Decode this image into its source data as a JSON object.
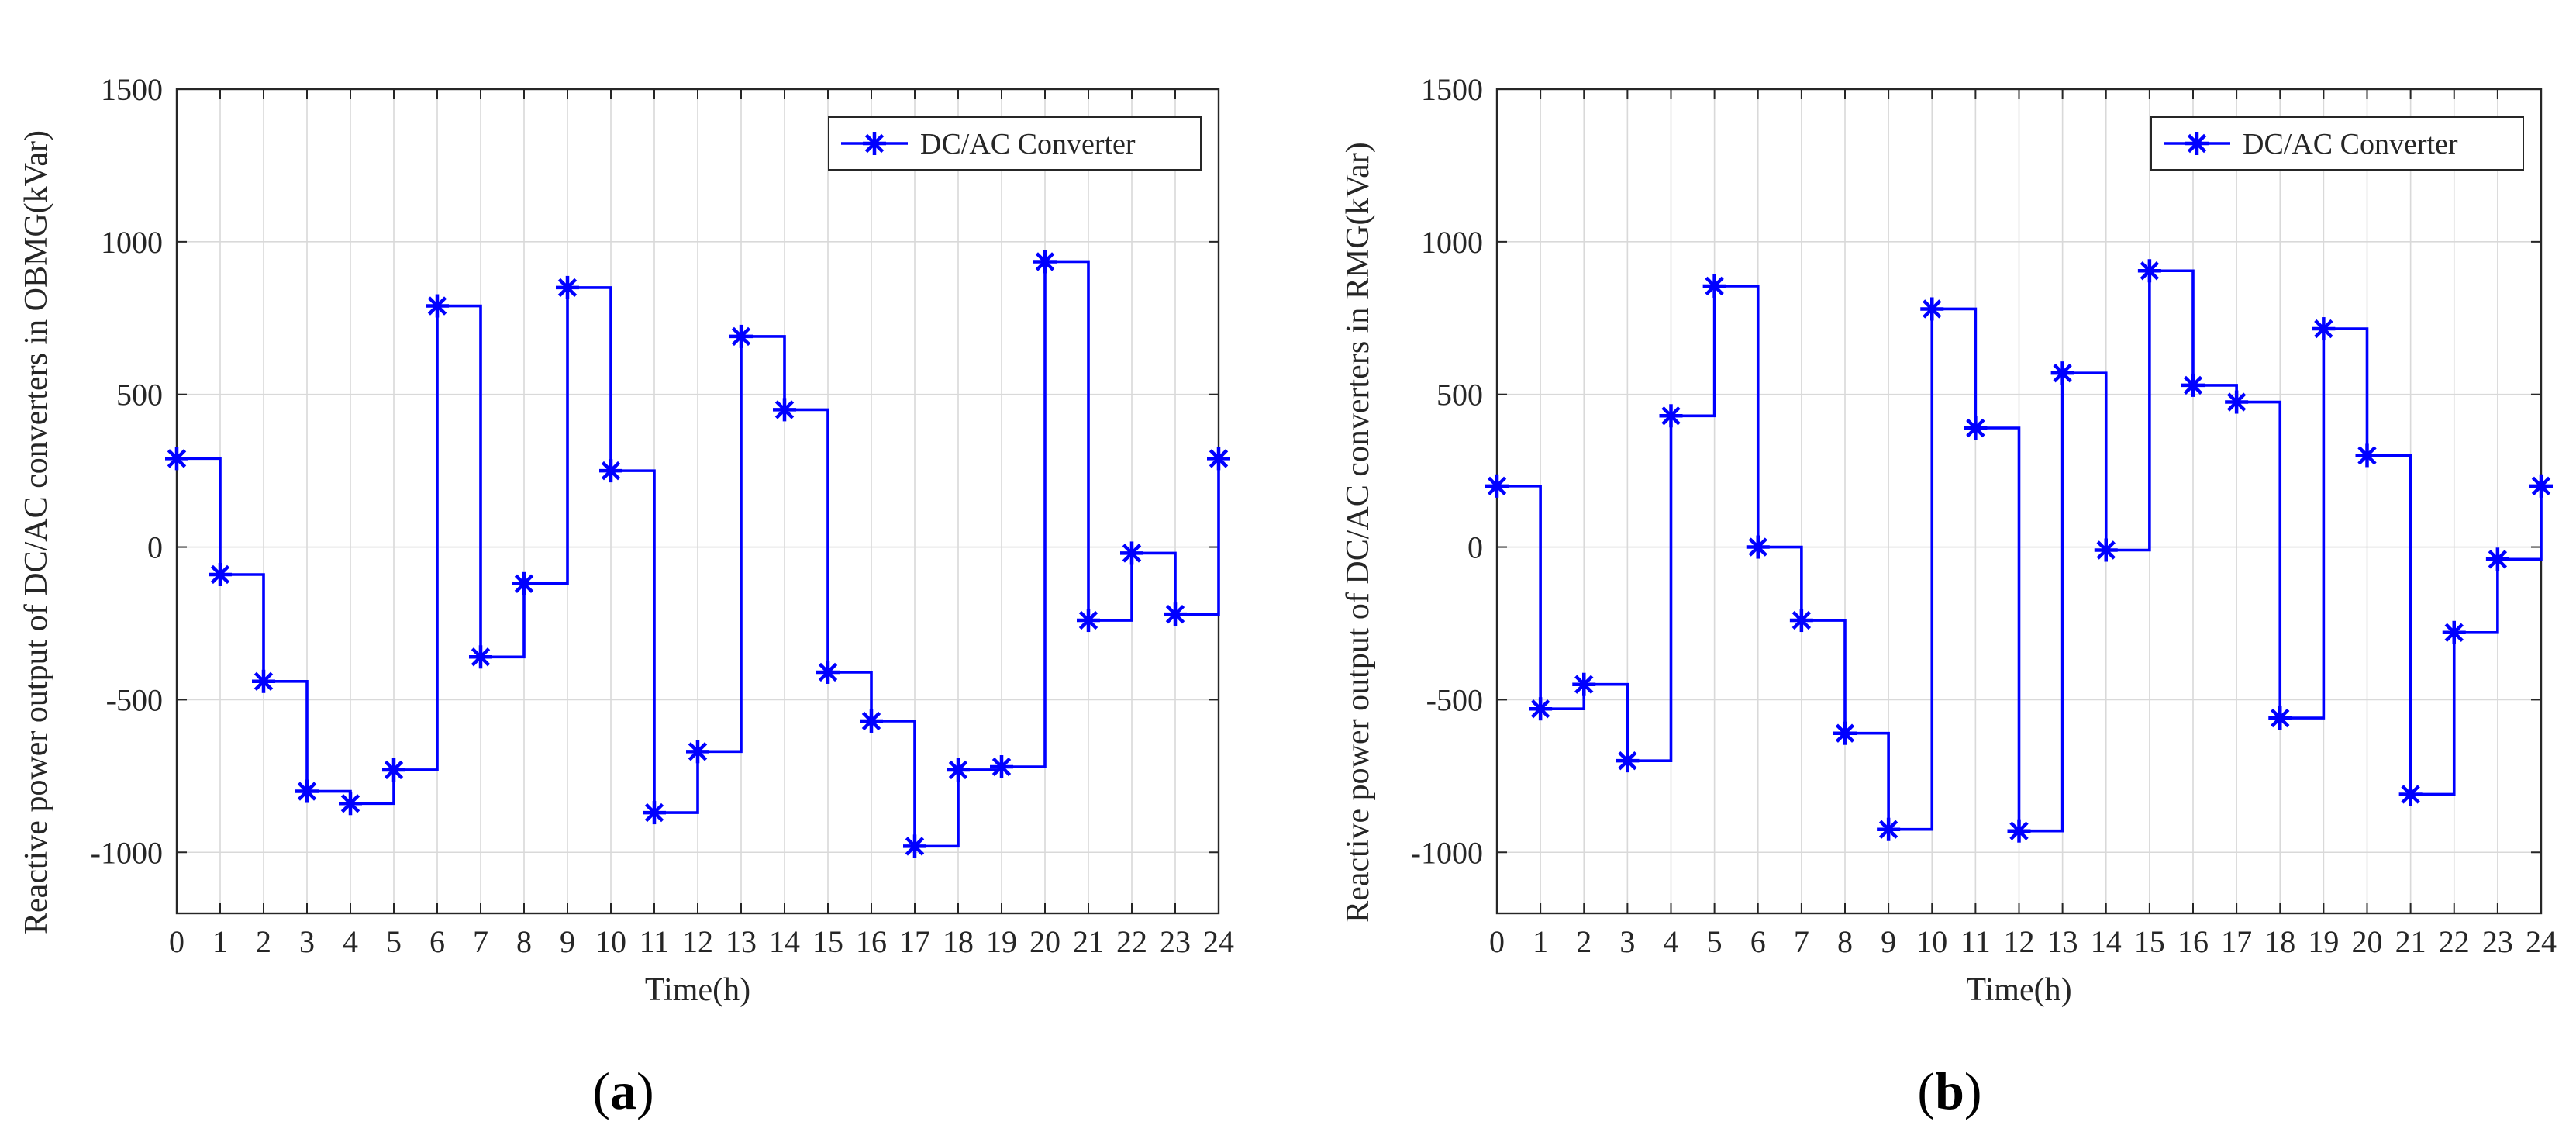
{
  "colors": {
    "series": "#0000FF",
    "grid": "#d9d9d9",
    "axis": "#262626"
  },
  "chart_data": [
    {
      "id": "a",
      "type": "line",
      "step": "post",
      "marker": "asterisk-icon",
      "panel_label": {
        "open": "(",
        "letter": "a",
        "close": ")"
      },
      "xlabel": "Time(h)",
      "ylabel": "Reactive power output of DC/AC converters in OBMG(kVar)",
      "xlim": [
        0,
        24
      ],
      "ylim": [
        -1200,
        1500
      ],
      "xticks": [
        0,
        1,
        2,
        3,
        4,
        5,
        6,
        7,
        8,
        9,
        10,
        11,
        12,
        13,
        14,
        15,
        16,
        17,
        18,
        19,
        20,
        21,
        22,
        23,
        24
      ],
      "yticks": [
        -1000,
        -500,
        0,
        500,
        1000,
        1500
      ],
      "grid": true,
      "legend": {
        "position": "top-right",
        "entries": [
          "DC/AC Converter"
        ]
      },
      "series": [
        {
          "name": "DC/AC Converter",
          "x": [
            0,
            1,
            2,
            3,
            4,
            5,
            6,
            7,
            8,
            9,
            10,
            11,
            12,
            13,
            14,
            15,
            16,
            17,
            18,
            19,
            20,
            21,
            22,
            23,
            24
          ],
          "values": [
            290,
            -90,
            -440,
            -800,
            -840,
            -730,
            790,
            -360,
            -120,
            850,
            250,
            -870,
            -670,
            690,
            450,
            -410,
            -570,
            -980,
            -730,
            -720,
            935,
            -240,
            -20,
            -220,
            290
          ]
        }
      ]
    },
    {
      "id": "b",
      "type": "line",
      "step": "post",
      "marker": "asterisk-icon",
      "panel_label": {
        "open": "(",
        "letter": "b",
        "close": ")"
      },
      "xlabel": "Time(h)",
      "ylabel": "Reactive power output of DC/AC converters in RMG(kVar)",
      "xlim": [
        0,
        24
      ],
      "ylim": [
        -1200,
        1500
      ],
      "xticks": [
        0,
        1,
        2,
        3,
        4,
        5,
        6,
        7,
        8,
        9,
        10,
        11,
        12,
        13,
        14,
        15,
        16,
        17,
        18,
        19,
        20,
        21,
        22,
        23,
        24
      ],
      "yticks": [
        -1000,
        -500,
        0,
        500,
        1000,
        1500
      ],
      "grid": true,
      "legend": {
        "position": "top-right",
        "entries": [
          "DC/AC Converter"
        ]
      },
      "series": [
        {
          "name": "DC/AC Converter",
          "x": [
            0,
            1,
            2,
            3,
            4,
            5,
            6,
            7,
            8,
            9,
            10,
            11,
            12,
            13,
            14,
            15,
            16,
            17,
            18,
            19,
            20,
            21,
            22,
            23,
            24
          ],
          "values": [
            200,
            -530,
            -450,
            -700,
            430,
            855,
            0,
            -240,
            -610,
            -925,
            780,
            390,
            -930,
            570,
            -10,
            905,
            530,
            475,
            -560,
            715,
            300,
            -810,
            -280,
            -40,
            200
          ]
        }
      ]
    }
  ]
}
